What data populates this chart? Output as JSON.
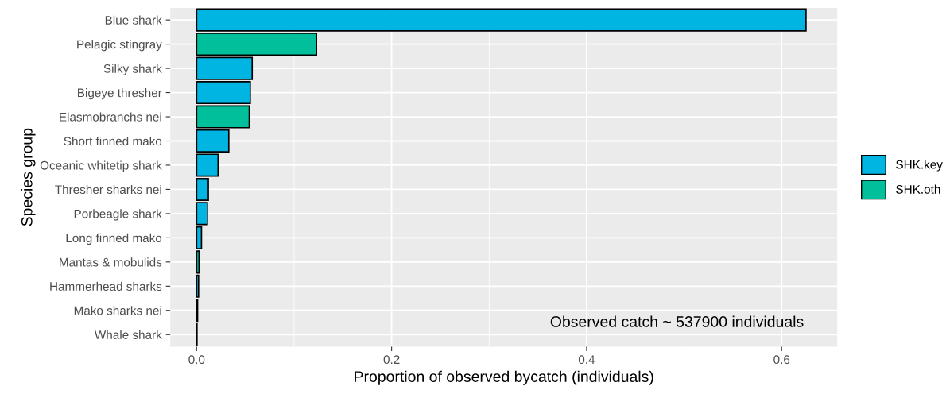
{
  "chart_data": {
    "type": "bar",
    "orientation": "horizontal",
    "xlabel": "Proportion of observed bycatch (individuals)",
    "ylabel": "Species group",
    "categories": [
      "Blue shark",
      "Pelagic stingray",
      "Silky shark",
      "Bigeye thresher",
      "Elasmobranchs nei",
      "Short finned mako",
      "Oceanic whitetip shark",
      "Thresher sharks nei",
      "Porbeagle shark",
      "Long finned mako",
      "Mantas & mobulids",
      "Hammerhead sharks",
      "Mako sharks nei",
      "Whale shark"
    ],
    "series": [
      {
        "name": "SHK.key",
        "color": "#00b5e2",
        "values": [
          0.625,
          null,
          0.057,
          0.055,
          null,
          0.033,
          0.022,
          0.012,
          0.011,
          0.005,
          null,
          0.002,
          0.001,
          0.0004
        ]
      },
      {
        "name": "SHK.oth",
        "color": "#00bf9a",
        "values": [
          null,
          0.123,
          null,
          null,
          0.054,
          null,
          null,
          null,
          null,
          null,
          0.0025,
          null,
          null,
          null
        ]
      }
    ],
    "xlim": [
      -0.027,
      0.657
    ],
    "xticks": [
      {
        "value": 0,
        "label": "0.0"
      },
      {
        "value": 0.1,
        "label": null
      },
      {
        "value": 0.2,
        "label": "0.2"
      },
      {
        "value": 0.3,
        "label": null
      },
      {
        "value": 0.4,
        "label": "0.4"
      },
      {
        "value": 0.5,
        "label": null
      },
      {
        "value": 0.6,
        "label": "0.6"
      }
    ],
    "grid": true,
    "legend": "right",
    "annotations": [
      "Observed catch ~ 537900 individuals"
    ]
  }
}
